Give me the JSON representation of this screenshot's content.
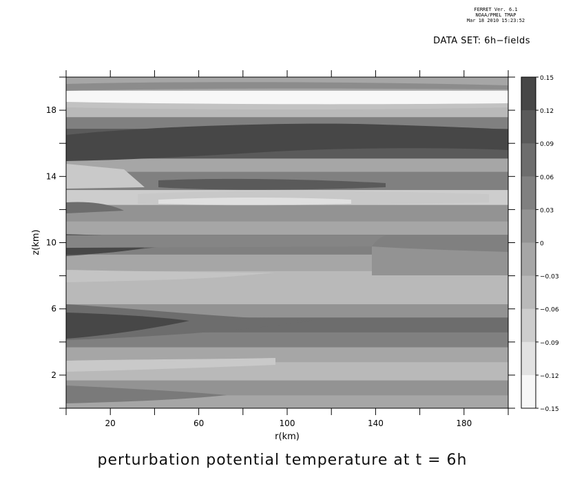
{
  "header": {
    "ferret_stamp_line1": "FERRET Ver. 6.1",
    "ferret_stamp_line2": "NOAA/PMEL TMAP",
    "ferret_stamp_line3": "Mar 18 2010 15:23:52",
    "dataset": "DATA SET: 6h−fields"
  },
  "chart_data": {
    "type": "heatmap",
    "title": "perturbation potential temperature at t = 6h",
    "xlabel": "r(km)",
    "ylabel": "z(km)",
    "xlim": [
      0,
      200
    ],
    "ylim": [
      0,
      20
    ],
    "x_ticks": [
      20,
      60,
      100,
      140,
      180
    ],
    "y_ticks": [
      2,
      6,
      10,
      14,
      18
    ],
    "colorbar": {
      "levels": [
        -0.15,
        -0.12,
        -0.09,
        -0.06,
        -0.03,
        0,
        0.03,
        0.06,
        0.09,
        0.12,
        0.15
      ],
      "labels": [
        "0.15",
        "0.12",
        "0.09",
        "0.06",
        "0.03",
        "0",
        "−0.03",
        "−0.06",
        "−0.09",
        "−0.12",
        "−0.15"
      ],
      "colors": [
        "#f7f7f7",
        "#e2e2e2",
        "#cdcdcd",
        "#b9b9b9",
        "#a6a6a6",
        "#939393",
        "#808080",
        "#6d6d6d",
        "#5a5a5a",
        "#474747"
      ]
    },
    "bands": [
      {
        "z": [
          0.0,
          0.8
        ],
        "v": -0.02
      },
      {
        "z": [
          0.8,
          1.7
        ],
        "v": 0.015
      },
      {
        "z": [
          1.7,
          2.8
        ],
        "v": -0.045
      },
      {
        "z": [
          2.8,
          3.7
        ],
        "v": -0.01
      },
      {
        "z": [
          3.7,
          4.6
        ],
        "v": 0.04
      },
      {
        "z": [
          4.6,
          5.5
        ],
        "v": 0.07
      },
      {
        "z": [
          5.5,
          6.3
        ],
        "v": 0.01
      },
      {
        "z": [
          6.3,
          8.3
        ],
        "v": -0.045
      },
      {
        "z": [
          8.3,
          9.3
        ],
        "v": -0.02
      },
      {
        "z": [
          9.3,
          10.5
        ],
        "v": 0.04
      },
      {
        "z": [
          10.5,
          11.3
        ],
        "v": -0.02
      },
      {
        "z": [
          11.3,
          12.3
        ],
        "v": 0.015
      },
      {
        "z": [
          12.3,
          13.2
        ],
        "v": -0.065
      },
      {
        "z": [
          13.2,
          14.3
        ],
        "v": 0.045
      },
      {
        "z": [
          14.3,
          15.1
        ],
        "v": -0.02
      },
      {
        "z": [
          15.1,
          16.9
        ],
        "v": 0.1
      },
      {
        "z": [
          16.9,
          17.6
        ],
        "v": 0.035
      },
      {
        "z": [
          17.6,
          18.3
        ],
        "v": -0.06
      },
      {
        "z": [
          18.3,
          19.2
        ],
        "v": -0.145
      },
      {
        "z": [
          19.2,
          20.0
        ],
        "v": -0.03
      }
    ]
  }
}
